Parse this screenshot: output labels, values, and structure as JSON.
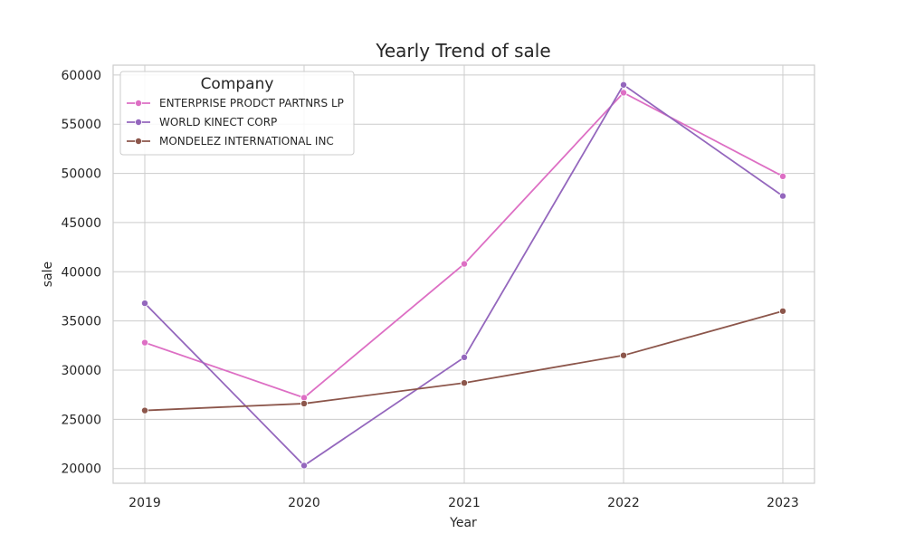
{
  "chart_data": {
    "type": "line",
    "title": "Yearly Trend of sale",
    "xlabel": "Year",
    "ylabel": "sale",
    "x": [
      "2019",
      "2020",
      "2021",
      "2022",
      "2023"
    ],
    "ylim": [
      18500,
      61000
    ],
    "yticks": [
      20000,
      25000,
      30000,
      35000,
      40000,
      45000,
      50000,
      55000,
      60000
    ],
    "grid": true,
    "legend": {
      "title": "Company",
      "placement": "top-left"
    },
    "series": [
      {
        "name": "ENTERPRISE PRODCT PARTNRS LP",
        "color": "#dd6fc4",
        "values": [
          32800,
          27200,
          40800,
          58200,
          49700
        ]
      },
      {
        "name": "WORLD KINECT CORP",
        "color": "#9467bd",
        "values": [
          36800,
          20300,
          31300,
          59000,
          47700
        ]
      },
      {
        "name": "MONDELEZ INTERNATIONAL INC",
        "color": "#8c564b",
        "values": [
          25900,
          26600,
          28700,
          31500,
          36000
        ]
      }
    ]
  }
}
